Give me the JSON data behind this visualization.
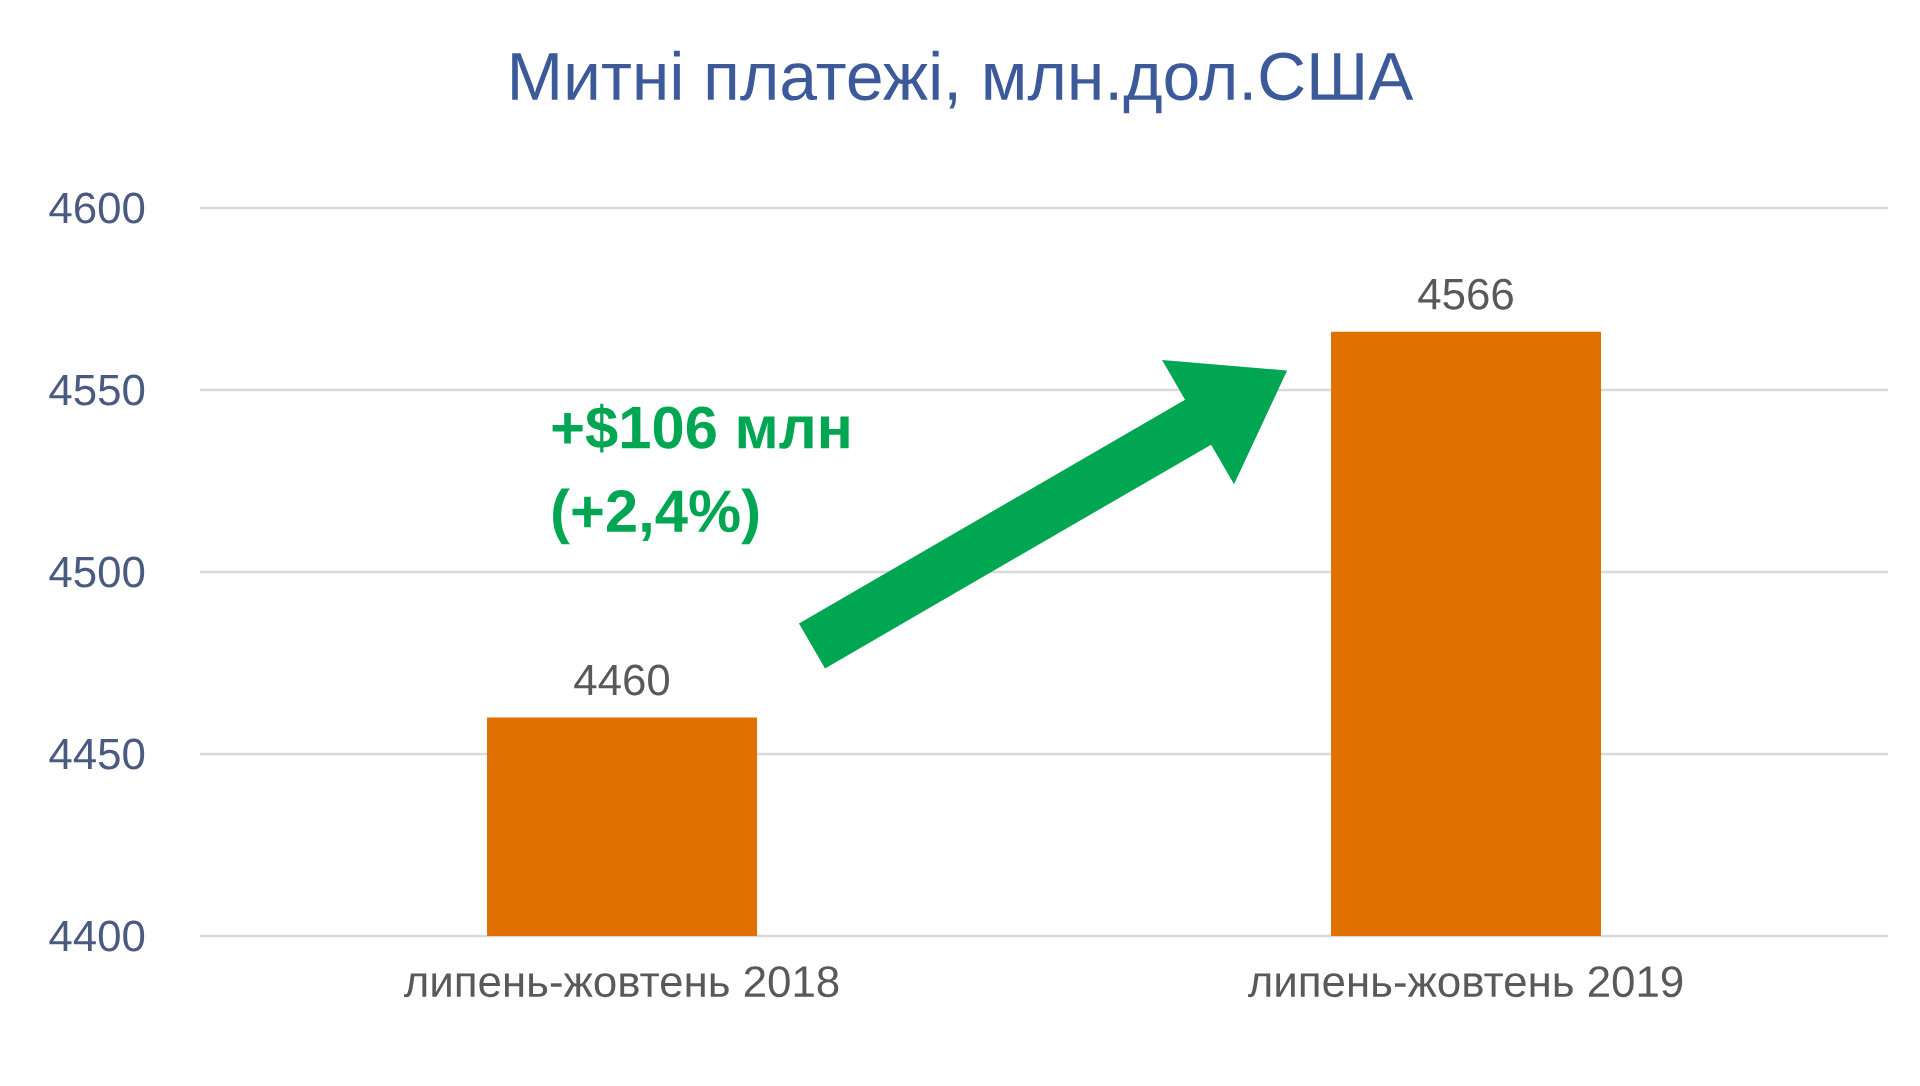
{
  "chart_data": {
    "type": "bar",
    "title": "Митні платежі, млн.дол.США",
    "categories": [
      "липень-жовтень 2018",
      "липень-жовтень 2019"
    ],
    "values": [
      4460,
      4566
    ],
    "color": "#e07000",
    "ylim": [
      4400,
      4600
    ],
    "yticks": [
      4400,
      4450,
      4500,
      4550,
      4600
    ],
    "grid": "y",
    "data_labels": true,
    "annotations": [
      "+$106 млн",
      "(+2,4%)"
    ]
  }
}
